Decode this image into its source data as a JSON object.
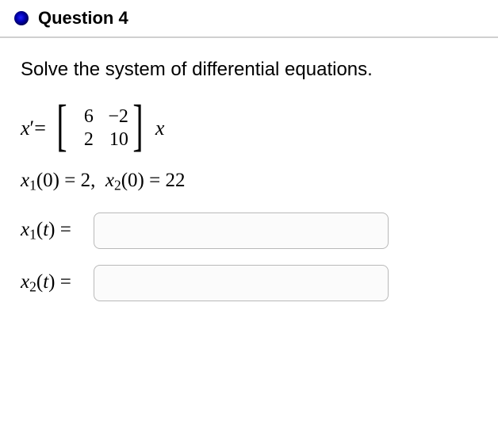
{
  "header": {
    "title": "Question 4",
    "bullet_color_inner": "#2020ff",
    "bullet_color_outer": "#000000"
  },
  "prompt": "Solve the system of differential equations.",
  "equation": {
    "lhs_html": "<span class='ital'>x</span>′=",
    "matrix": [
      [
        "6",
        "−2"
      ],
      [
        "2",
        "10"
      ]
    ],
    "trail_html": "<span class='ital'>x</span>"
  },
  "initial_conditions_html": "<span class='ital'>x</span><sub>1</sub>(0) = 2, &nbsp;<span class='ital'>x</span><sub>2</sub>(0) = 22",
  "answers": [
    {
      "label_html": "<span class='ital'>x</span><sub>1</sub>(<span class='ital'>t</span>) =",
      "value": ""
    },
    {
      "label_html": "<span class='ital'>x</span><sub>2</sub>(<span class='ital'>t</span>) =",
      "value": ""
    }
  ],
  "style": {
    "border_color": "#d0d0d0",
    "input_border": "#b9b9b9",
    "input_bg": "#fbfbfb",
    "bg": "#ffffff",
    "text": "#000000"
  }
}
